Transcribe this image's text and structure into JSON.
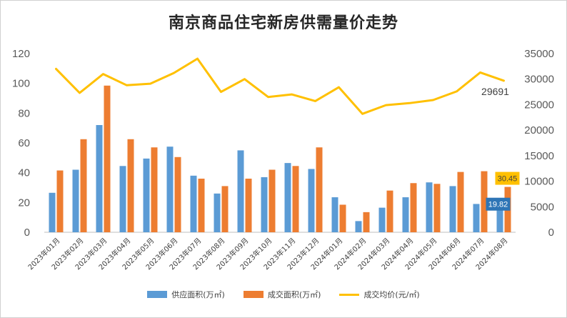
{
  "chart_data": {
    "type": "bar",
    "title": "南京商品住宅新房供需量价走势",
    "categories": [
      "2023年01月",
      "2023年02月",
      "2023年03月",
      "2023年04月",
      "2023年05月",
      "2023年06月",
      "2023年07月",
      "2023年08月",
      "2023年09月",
      "2023年10月",
      "2023年11月",
      "2023年12月",
      "2024年01月",
      "2024年02月",
      "2024年03月",
      "2024年04月",
      "2024年05月",
      "2024年06月",
      "2024年07月",
      "2024年08月"
    ],
    "series": [
      {
        "name": "供应面积(万㎡)",
        "type": "bar",
        "axis": "left",
        "color": "#5b9bd5",
        "values": [
          26.5,
          42,
          72,
          44.5,
          49.5,
          57.5,
          38,
          26,
          55,
          37,
          46.5,
          42.5,
          23.5,
          7.5,
          16.5,
          23.5,
          33.5,
          31,
          19,
          19.82
        ]
      },
      {
        "name": "成交面积(万㎡)",
        "type": "bar",
        "axis": "left",
        "color": "#ed7d31",
        "values": [
          41.5,
          62.5,
          98.5,
          62.5,
          57,
          50.5,
          36,
          31,
          36,
          42,
          44.5,
          57,
          18.5,
          13.5,
          28,
          33,
          32.5,
          40.5,
          41,
          30.45
        ]
      },
      {
        "name": "成交均价(元/㎡)",
        "type": "line",
        "axis": "right",
        "color": "#ffc000",
        "values": [
          32000,
          27300,
          31000,
          28800,
          29100,
          31200,
          34000,
          27500,
          30000,
          26500,
          27000,
          25700,
          28400,
          23200,
          24900,
          25300,
          25900,
          27600,
          31300,
          29691
        ]
      }
    ],
    "y_left": {
      "min": 0,
      "max": 120,
      "ticks": [
        "0",
        "20",
        "40",
        "60",
        "80",
        "100",
        "120"
      ]
    },
    "y_right": {
      "min": 0,
      "max": 35000,
      "ticks": [
        "0",
        "5000",
        "10000",
        "15000",
        "20000",
        "25000",
        "30000",
        "35000"
      ]
    },
    "annotations": [
      {
        "series": 2,
        "index": 19,
        "text": "29691"
      },
      {
        "series": 1,
        "index": 19,
        "text": "30.45",
        "bg": "#ffc000",
        "fg": "#404040"
      },
      {
        "series": 0,
        "index": 19,
        "text": "19.82",
        "bg": "#2e75b6",
        "fg": "#ffffff"
      }
    ],
    "grid": false,
    "legend_position": "bottom"
  }
}
